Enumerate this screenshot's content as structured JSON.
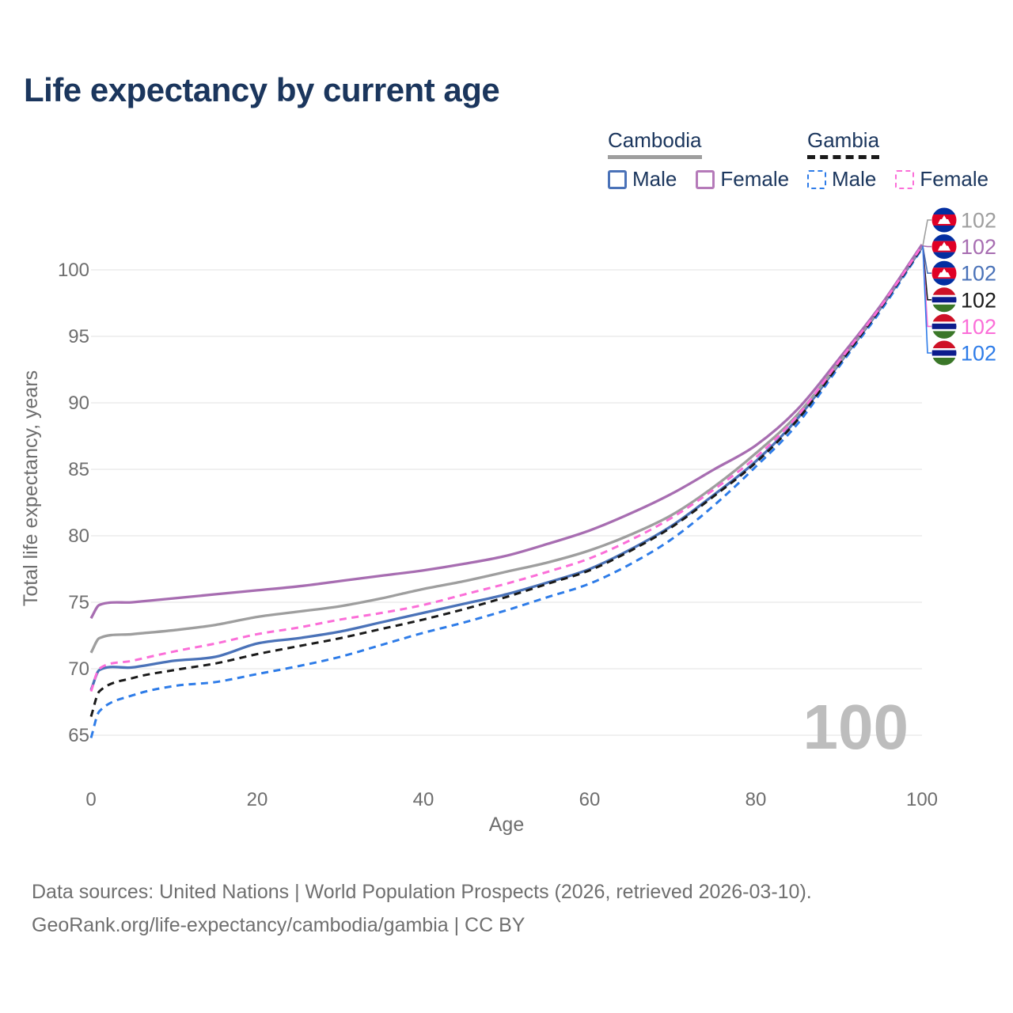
{
  "title": "Life expectancy by current age",
  "legend": {
    "groups": [
      {
        "country": "Cambodia",
        "line_style": "solid",
        "underline_color": "#9e9e9e",
        "items": [
          {
            "label": "Male",
            "color": "#4a72b8",
            "dash": false
          },
          {
            "label": "Female",
            "color": "#b57ab9",
            "dash": false
          }
        ]
      },
      {
        "country": "Gambia",
        "line_style": "dashed",
        "underline_color": "#1a1a1a",
        "items": [
          {
            "label": "Male",
            "color": "#2e7ce8",
            "dash": true
          },
          {
            "label": "Female",
            "color": "#fb6ed8",
            "dash": true
          }
        ]
      }
    ]
  },
  "watermark_age": "100",
  "end_labels": [
    {
      "series": "Cambodia",
      "flag": "cambodia",
      "color": "#9e9e9e",
      "value": "102"
    },
    {
      "series": "Cambodia Female",
      "flag": "cambodia",
      "color": "#a76db1",
      "value": "102"
    },
    {
      "series": "Cambodia Male",
      "flag": "cambodia",
      "color": "#4a72b8",
      "value": "102"
    },
    {
      "series": "Gambia",
      "flag": "gambia",
      "color": "#1a1a1a",
      "value": "102"
    },
    {
      "series": "Gambia Female",
      "flag": "gambia",
      "color": "#fb6ed8",
      "value": "102"
    },
    {
      "series": "Gambia Male",
      "flag": "gambia",
      "color": "#2e7ce8",
      "value": "102"
    }
  ],
  "footer": {
    "line1": "Data sources: United Nations | World Population Prospects (2026, retrieved 2026-03-10).",
    "line2": "GeoRank.org/life-expectancy/cambodia/gambia | CC BY"
  },
  "colors": {
    "title_text": "#1b365d",
    "tick_text": "#6e6e6e",
    "gridline": "#e8e8e8",
    "watermark": "#bdbdbd",
    "flag_cambodia": {
      "blue": "#032ea1",
      "red": "#e00025",
      "white": "#ffffff"
    },
    "flag_gambia": {
      "red": "#ce1126",
      "white": "#ffffff",
      "blue": "#0c1c8c",
      "green": "#3a7728"
    }
  },
  "chart_data": {
    "type": "line",
    "title": "Life expectancy by current age",
    "xlabel": "Age",
    "ylabel": "Total life expectancy, years",
    "xlim": [
      0,
      100
    ],
    "ylim": [
      63,
      103
    ],
    "xticks": [
      0,
      20,
      40,
      60,
      80,
      100
    ],
    "yticks": [
      65,
      70,
      75,
      80,
      85,
      90,
      95,
      100
    ],
    "grid": "horizontal-only",
    "legend_position": "top-right",
    "x": [
      0,
      1,
      5,
      10,
      15,
      20,
      25,
      30,
      35,
      40,
      45,
      50,
      55,
      60,
      65,
      70,
      75,
      80,
      85,
      90,
      95,
      100
    ],
    "series": [
      {
        "name": "Cambodia Male",
        "country": "Cambodia",
        "sex": "Male",
        "color": "#4a72b8",
        "dash": "solid",
        "values": [
          68.4,
          69.9,
          70.1,
          70.6,
          70.9,
          71.9,
          72.3,
          72.8,
          73.5,
          74.2,
          74.9,
          75.6,
          76.5,
          77.5,
          79.0,
          80.8,
          83.1,
          85.6,
          88.8,
          92.9,
          97.1,
          101.7
        ]
      },
      {
        "name": "Cambodia",
        "country": "Cambodia",
        "sex": "Both sexes",
        "color": "#9e9e9e",
        "dash": "solid",
        "values": [
          71.2,
          72.3,
          72.6,
          72.9,
          73.3,
          73.9,
          74.3,
          74.7,
          75.3,
          76.0,
          76.6,
          77.3,
          78.0,
          78.9,
          80.1,
          81.6,
          83.7,
          86.2,
          89.1,
          93.0,
          97.2,
          101.8
        ]
      },
      {
        "name": "Gambia Male",
        "country": "Gambia",
        "sex": "Male",
        "color": "#2e7ce8",
        "dash": "dashed",
        "values": [
          64.8,
          66.8,
          68.0,
          68.7,
          69.0,
          69.6,
          70.2,
          70.9,
          71.8,
          72.7,
          73.5,
          74.4,
          75.4,
          76.4,
          77.9,
          79.8,
          82.3,
          85.2,
          88.4,
          92.7,
          96.9,
          101.6
        ]
      },
      {
        "name": "Gambia",
        "country": "Gambia",
        "sex": "Both sexes",
        "color": "#1a1a1a",
        "dash": "dashed",
        "values": [
          66.4,
          68.3,
          69.3,
          69.9,
          70.4,
          71.1,
          71.7,
          72.3,
          73.0,
          73.7,
          74.5,
          75.4,
          76.4,
          77.4,
          78.9,
          80.7,
          83.0,
          85.5,
          88.7,
          92.9,
          97.1,
          101.7
        ]
      },
      {
        "name": "Cambodia Female",
        "country": "Cambodia",
        "sex": "Female",
        "color": "#a76db1",
        "dash": "solid",
        "values": [
          73.8,
          74.8,
          75.0,
          75.3,
          75.6,
          75.9,
          76.2,
          76.6,
          77.0,
          77.4,
          77.9,
          78.5,
          79.4,
          80.4,
          81.7,
          83.2,
          85.0,
          86.8,
          89.5,
          93.3,
          97.3,
          101.9
        ]
      },
      {
        "name": "Gambia Female",
        "country": "Gambia",
        "sex": "Female",
        "color": "#fb6ed8",
        "dash": "dashed",
        "values": [
          68.3,
          70.0,
          70.6,
          71.3,
          71.9,
          72.6,
          73.1,
          73.7,
          74.2,
          74.8,
          75.6,
          76.4,
          77.3,
          78.3,
          79.7,
          81.4,
          83.5,
          85.9,
          89.0,
          93.1,
          97.2,
          101.8
        ]
      }
    ],
    "annotations": {
      "current_age_watermark": "100",
      "end_value_labels": [
        102,
        102,
        102,
        102,
        102,
        102
      ]
    }
  }
}
